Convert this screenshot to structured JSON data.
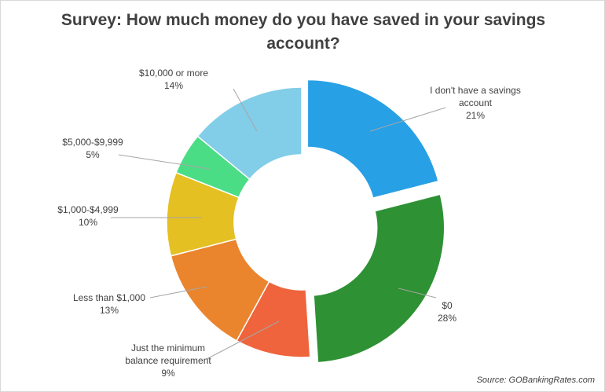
{
  "chart_data": {
    "type": "pie",
    "variant": "donut-exploded",
    "title": "Survey: How much money do you have saved in your savings account?",
    "slices": [
      {
        "label": "I don't have a savings account",
        "value": 21,
        "value_label": "21%",
        "color": "#27a0e6",
        "exploded": true
      },
      {
        "label": "$0",
        "value": 28,
        "value_label": "28%",
        "color": "#2e9134",
        "exploded": true
      },
      {
        "label": "Just the minimum balance requirement",
        "value": 9,
        "value_label": "9%",
        "color": "#ef643c",
        "exploded": false
      },
      {
        "label": "Less than $1,000",
        "value": 13,
        "value_label": "13%",
        "color": "#ea852d",
        "exploded": false
      },
      {
        "label": "$1,000-$4,999",
        "value": 10,
        "value_label": "10%",
        "color": "#e5c022",
        "exploded": false
      },
      {
        "label": "$5,000-$9,999",
        "value": 5,
        "value_label": "5%",
        "color": "#4bdd86",
        "exploded": false
      },
      {
        "label": "$10,000 or more",
        "value": 14,
        "value_label": "14%",
        "color": "#82cde8",
        "exploded": false
      }
    ],
    "source": "Source: GOBankingRates.com"
  }
}
